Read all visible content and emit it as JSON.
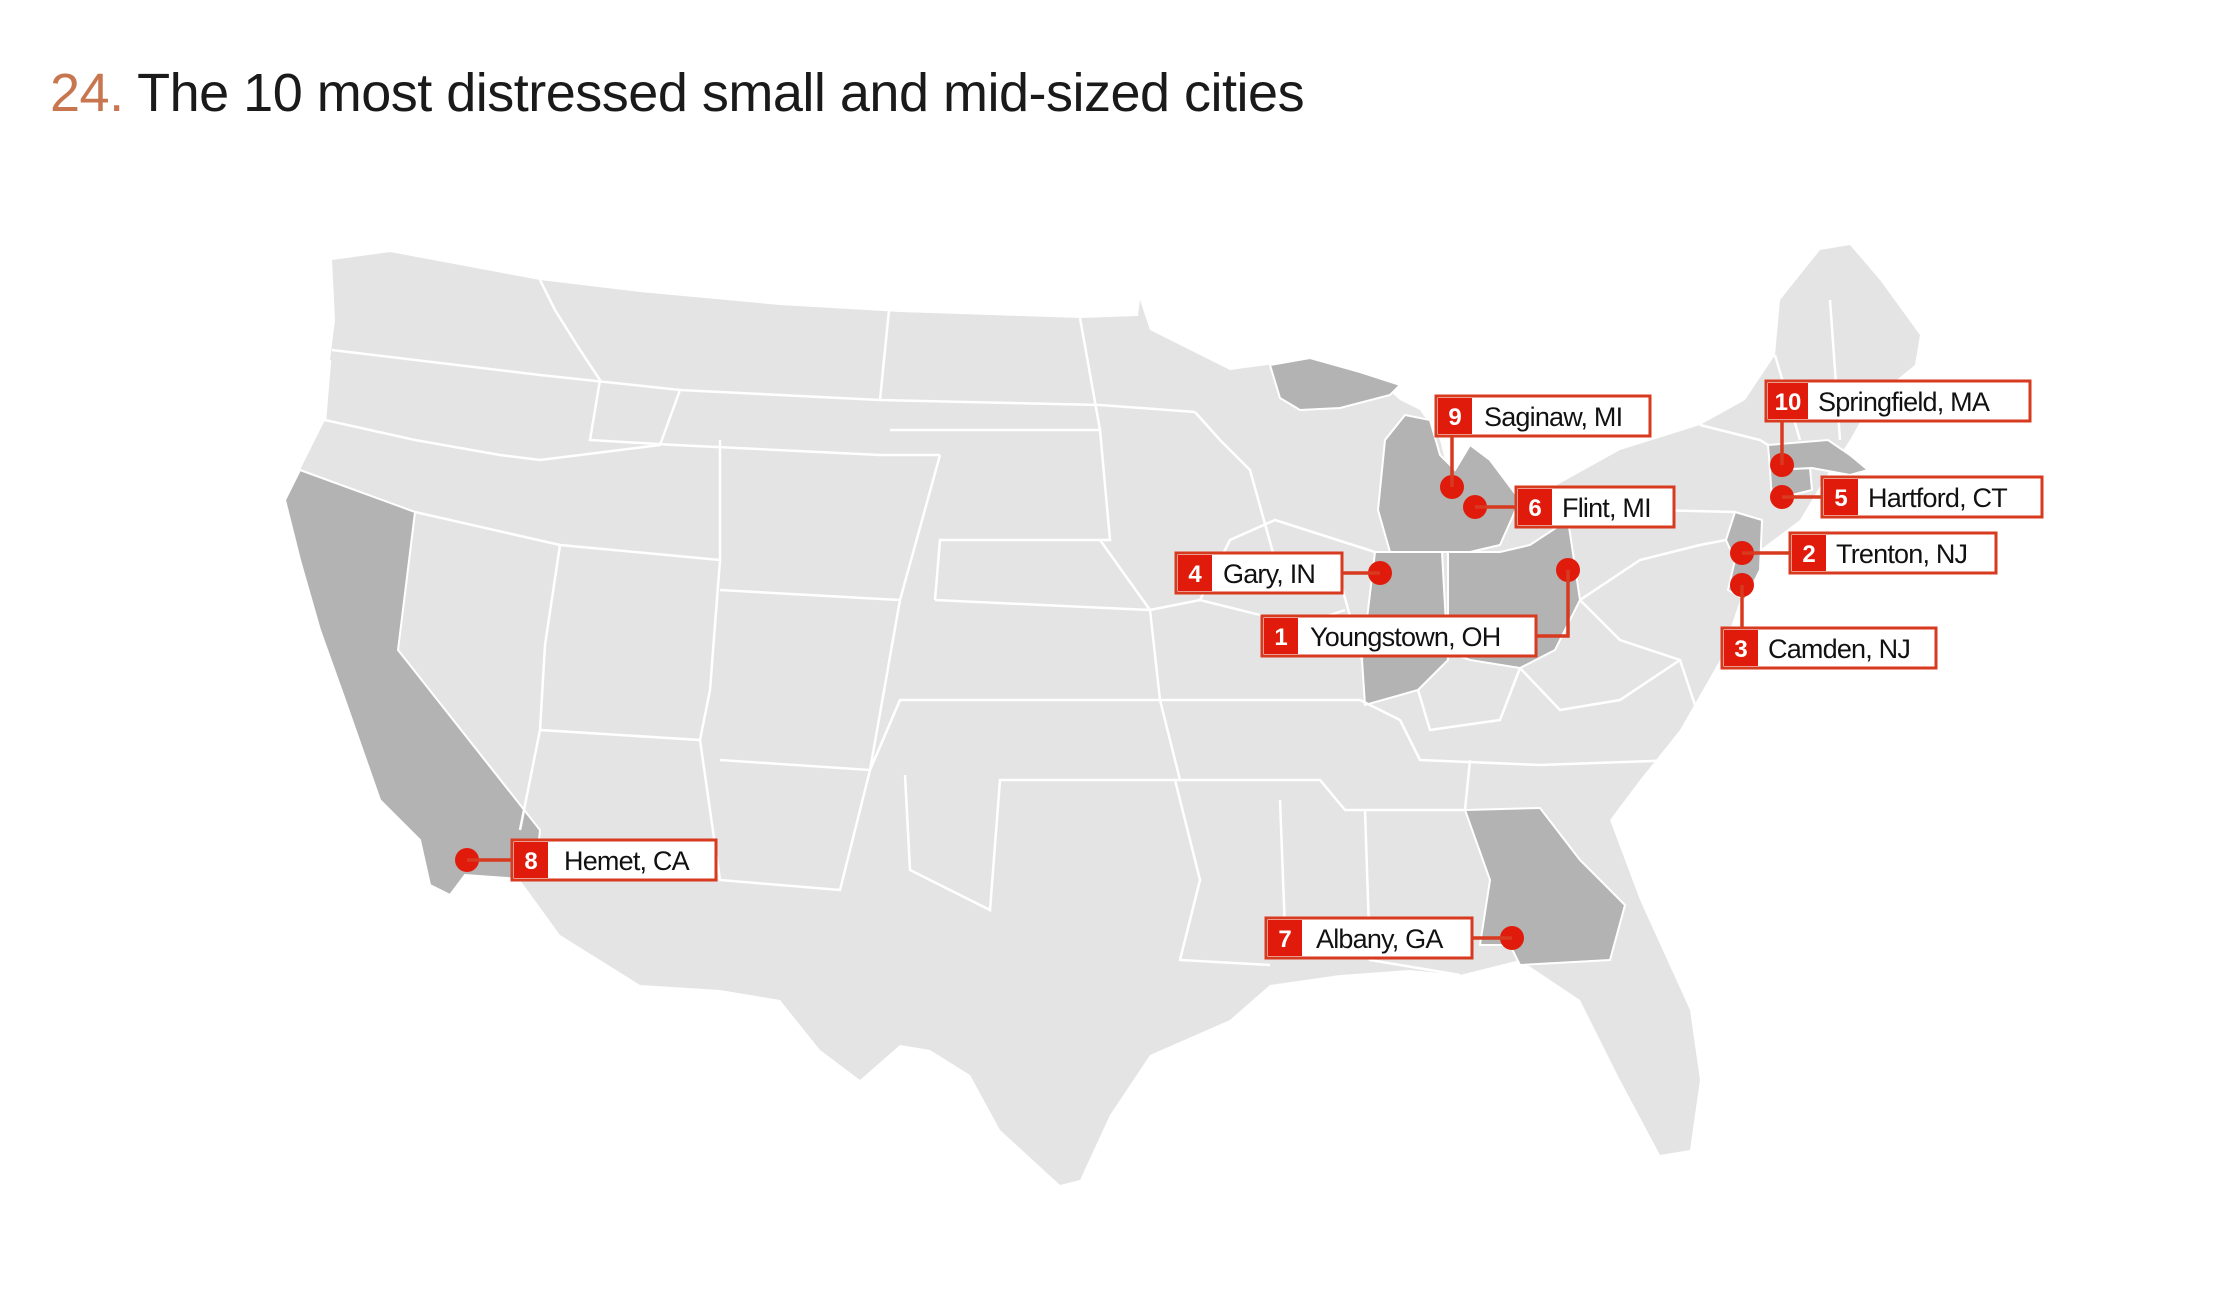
{
  "title": {
    "number": "24.",
    "text": "The 10 most distressed small and mid-sized cities"
  },
  "colors": {
    "land": "#e4e4e4",
    "highlighted_state": "#b3b3b3",
    "border": "#ffffff",
    "marker": "#e01b0b",
    "title_number": "#c8764f"
  },
  "highlighted_states": [
    "California",
    "Indiana",
    "Michigan",
    "Ohio",
    "Georgia",
    "New Jersey",
    "Connecticut",
    "Massachusetts"
  ],
  "cities": [
    {
      "rank": "1",
      "name": "Youngstown, OH"
    },
    {
      "rank": "2",
      "name": "Trenton, NJ"
    },
    {
      "rank": "3",
      "name": "Camden, NJ"
    },
    {
      "rank": "4",
      "name": "Gary, IN"
    },
    {
      "rank": "5",
      "name": "Hartford, CT"
    },
    {
      "rank": "6",
      "name": "Flint, MI"
    },
    {
      "rank": "7",
      "name": "Albany, GA"
    },
    {
      "rank": "8",
      "name": "Hemet, CA"
    },
    {
      "rank": "9",
      "name": "Saginaw, MI"
    },
    {
      "rank": "10",
      "name": "Springfield, MA"
    }
  ]
}
